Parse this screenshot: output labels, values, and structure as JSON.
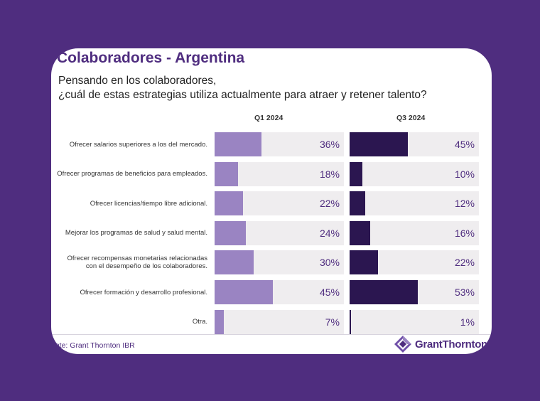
{
  "title": "Colaboradores - Argentina",
  "question": {
    "line1": "Pensando en los colaboradores,",
    "line2": "¿cuál de estas estrategias utiliza actualmente para atraer y retener talento?"
  },
  "source": "ente: Grant Thornton IBR",
  "logo": {
    "text": "GrantThornton",
    "icon": "grant-thornton-logo-icon"
  },
  "colors": {
    "background": "#4f2d7f",
    "q1_bar": "#9a84c2",
    "q3_bar": "#2b1650",
    "track": "#efedef",
    "accent": "#4f2d7f"
  },
  "chart_data": {
    "type": "bar",
    "orientation": "horizontal",
    "xlim": [
      0,
      100
    ],
    "grid": false,
    "categories": [
      "Ofrecer salarios superiores a los del mercado.",
      "Ofrecer programas de beneficios para empleados.",
      "Ofrecer licencias/tiempo libre adicional.",
      "Mejorar los programas de salud y salud mental.",
      "Ofrecer recompensas monetarias relacionadas con el desempeño de los colaboradores.",
      "Ofrecer formación y desarrollo profesional.",
      "Otra."
    ],
    "series": [
      {
        "name": "Q1 2024",
        "values": [
          36,
          18,
          22,
          24,
          30,
          45,
          7
        ],
        "labels": [
          "36%",
          "18%",
          "22%",
          "24%",
          "30%",
          "45%",
          "7%"
        ]
      },
      {
        "name": "Q3 2024",
        "values": [
          45,
          10,
          12,
          16,
          22,
          53,
          1
        ],
        "labels": [
          "45%",
          "10%",
          "12%",
          "16%",
          "22%",
          "53%",
          "1%"
        ]
      }
    ]
  }
}
